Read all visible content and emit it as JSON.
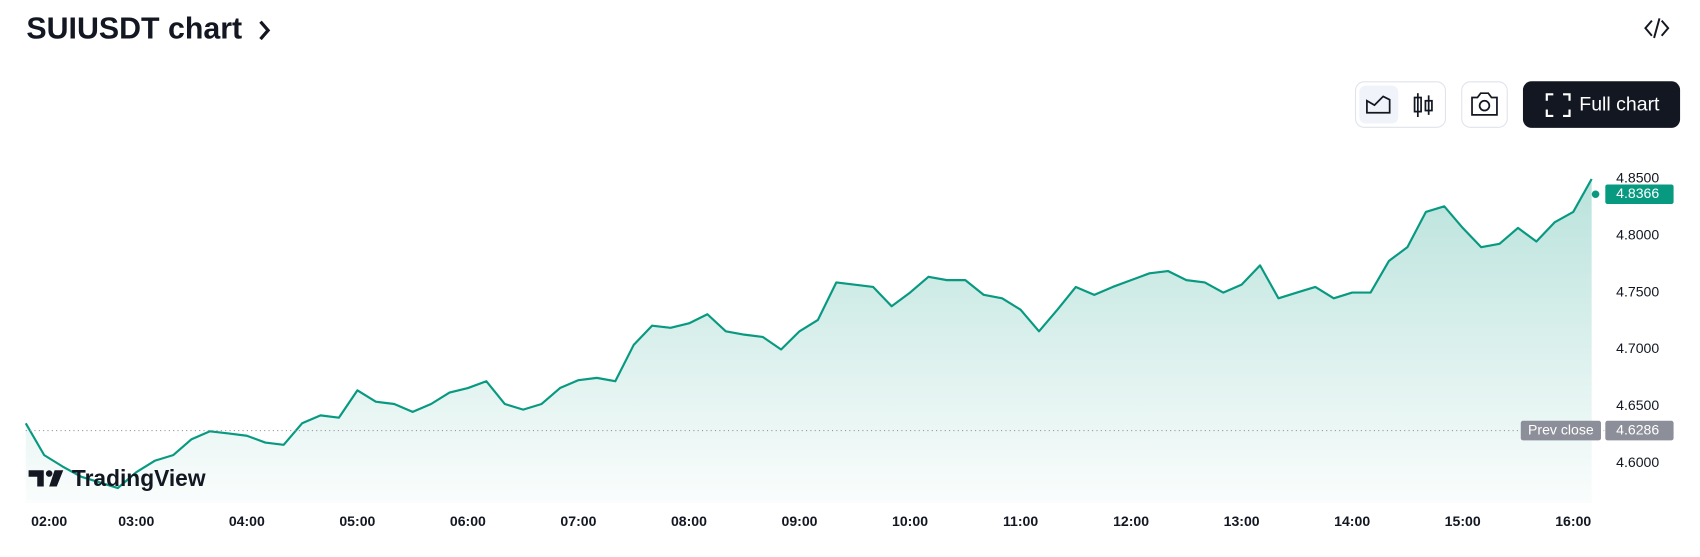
{
  "chart_data": {
    "type": "line",
    "title": "SUIUSDT chart",
    "button_label": "Full chart",
    "watermark": "TradingView",
    "color": "#089981",
    "x": [
      "02:00",
      "02:10",
      "02:20",
      "02:30",
      "02:40",
      "02:50",
      "03:00",
      "03:10",
      "03:20",
      "03:30",
      "03:40",
      "03:50",
      "04:00",
      "04:10",
      "04:20",
      "04:30",
      "04:40",
      "04:50",
      "05:00",
      "05:10",
      "05:20",
      "05:30",
      "05:40",
      "05:50",
      "06:00",
      "06:10",
      "06:20",
      "06:30",
      "06:40",
      "06:50",
      "07:00",
      "07:10",
      "07:20",
      "07:30",
      "07:40",
      "07:50",
      "08:00",
      "08:10",
      "08:20",
      "08:30",
      "08:40",
      "08:50",
      "09:00",
      "09:10",
      "09:20",
      "09:30",
      "09:40",
      "09:50",
      "10:00",
      "10:10",
      "10:20",
      "10:30",
      "10:40",
      "10:50",
      "11:00",
      "11:10",
      "11:20",
      "11:30",
      "11:40",
      "11:50",
      "12:00",
      "12:10",
      "12:20",
      "12:30",
      "12:40",
      "12:50",
      "13:00",
      "13:10",
      "13:20",
      "13:30",
      "13:40",
      "13:50",
      "14:00",
      "14:10",
      "14:20",
      "14:30",
      "14:40",
      "14:50",
      "15:00",
      "15:10",
      "15:20",
      "15:30",
      "15:40",
      "15:50",
      "16:00",
      "16:10"
    ],
    "values": [
      4.635,
      4.607,
      4.597,
      4.588,
      4.583,
      4.578,
      4.592,
      4.602,
      4.607,
      4.621,
      4.628,
      4.626,
      4.624,
      4.618,
      4.616,
      4.635,
      4.642,
      4.64,
      4.664,
      4.654,
      4.652,
      4.645,
      4.652,
      4.662,
      4.666,
      4.672,
      4.652,
      4.647,
      4.652,
      4.666,
      4.673,
      4.675,
      4.672,
      4.704,
      4.721,
      4.719,
      4.723,
      4.731,
      4.716,
      4.713,
      4.711,
      4.7,
      4.716,
      4.726,
      4.759,
      4.757,
      4.755,
      4.738,
      4.75,
      4.764,
      4.761,
      4.761,
      4.748,
      4.745,
      4.735,
      4.716,
      4.735,
      4.755,
      4.748,
      4.755,
      4.761,
      4.767,
      4.769,
      4.761,
      4.759,
      4.75,
      4.757,
      4.774,
      4.745,
      4.75,
      4.755,
      4.745,
      4.75,
      4.75,
      4.778,
      4.79,
      4.821,
      4.826,
      4.807,
      4.79,
      4.793,
      4.807,
      4.795,
      4.812,
      4.821,
      4.85
    ],
    "ylim": [
      4.565,
      4.875
    ],
    "yticks": [
      {
        "value": 4.6,
        "label": "4.6000"
      },
      {
        "value": 4.65,
        "label": "4.6500"
      },
      {
        "value": 4.7,
        "label": "4.7000"
      },
      {
        "value": 4.75,
        "label": "4.7500"
      },
      {
        "value": 4.8,
        "label": "4.8000"
      },
      {
        "value": 4.85,
        "label": "4.8500"
      }
    ],
    "xticks": [
      "02:00",
      "03:00",
      "04:00",
      "05:00",
      "06:00",
      "07:00",
      "08:00",
      "09:00",
      "10:00",
      "11:00",
      "12:00",
      "13:00",
      "14:00",
      "15:00",
      "16:00"
    ],
    "last_value": 4.8366,
    "prev_close": 4.6286,
    "prev_close_label": "Prev close"
  }
}
